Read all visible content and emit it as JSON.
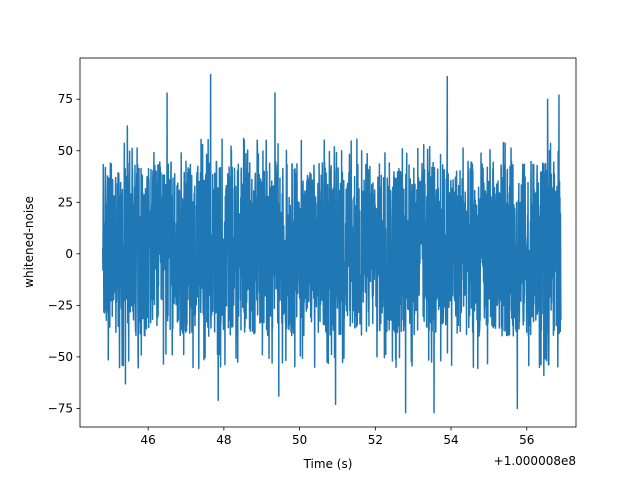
{
  "chart_data": {
    "type": "line",
    "title": "",
    "xlabel": "Time (s)",
    "ylabel": "whitened-noise",
    "x_offset_label": "+1.000008e8",
    "xlim": [
      44.2,
      57.3
    ],
    "ylim": [
      -84.0,
      95.0
    ],
    "x_ticks": [
      46,
      48,
      50,
      52,
      54,
      56
    ],
    "x_tick_labels": [
      "46",
      "48",
      "50",
      "52",
      "54",
      "56"
    ],
    "y_ticks": [
      -75,
      -50,
      -25,
      0,
      25,
      50,
      75
    ],
    "y_tick_labels": [
      "−75",
      "−50",
      "−25",
      "0",
      "25",
      "50",
      "75"
    ],
    "grid": false,
    "series": [
      {
        "color": "#1f77b4",
        "x_range": [
          44.8,
          56.9
        ],
        "mean": 0,
        "core_band": [
          -40,
          45
        ],
        "typical_band": [
          -50,
          52
        ],
        "peaks": [
          {
            "x": 45.45,
            "y": 62
          },
          {
            "x": 46.5,
            "y": 78
          },
          {
            "x": 47.65,
            "y": 87
          },
          {
            "x": 49.35,
            "y": 78
          },
          {
            "x": 53.9,
            "y": 86
          },
          {
            "x": 56.55,
            "y": 75
          },
          {
            "x": 56.85,
            "y": 77
          }
        ],
        "troughs": [
          {
            "x": 45.4,
            "y": -63
          },
          {
            "x": 47.85,
            "y": -71
          },
          {
            "x": 49.45,
            "y": -69
          },
          {
            "x": 50.95,
            "y": -73
          },
          {
            "x": 52.8,
            "y": -77
          },
          {
            "x": 53.55,
            "y": -77
          },
          {
            "x": 55.75,
            "y": -75
          },
          {
            "x": 56.45,
            "y": -59
          }
        ]
      }
    ]
  }
}
